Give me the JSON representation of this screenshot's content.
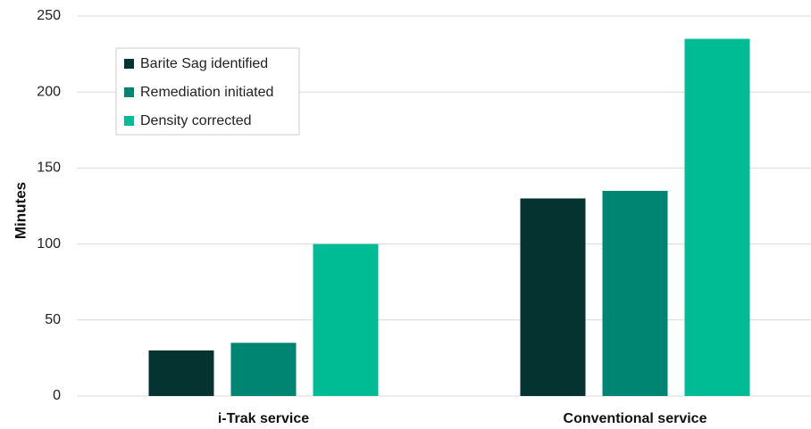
{
  "chart_data": {
    "type": "bar",
    "categories": [
      "i-Trak service",
      "Conventional service"
    ],
    "series": [
      {
        "name": "Barite Sag identified",
        "values": [
          30,
          130
        ],
        "color": "#053330"
      },
      {
        "name": "Remediation initiated",
        "values": [
          35,
          135
        ],
        "color": "#008573"
      },
      {
        "name": "Density corrected",
        "values": [
          100,
          235
        ],
        "color": "#00BC94"
      }
    ],
    "title": "",
    "xlabel": "",
    "ylabel": "Minutes",
    "ylim": [
      0,
      250
    ],
    "yticks": [
      0,
      50,
      100,
      150,
      200,
      250
    ],
    "grid": true,
    "legend_position": "top-left"
  }
}
